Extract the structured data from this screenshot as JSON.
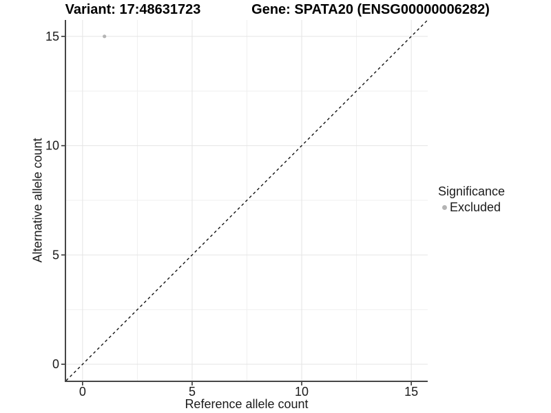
{
  "chart_data": {
    "type": "scatter",
    "titles": {
      "variant": "Variant: 17:48631723",
      "gene": "Gene: SPATA20 (ENSG00000006282)"
    },
    "xlabel": "Reference allele count",
    "ylabel": "Alternative allele count",
    "axis_range": [
      -0.75,
      15.75
    ],
    "xlim": [
      0,
      15
    ],
    "ylim": [
      0,
      15
    ],
    "ticks": [
      0,
      5,
      10,
      15
    ],
    "minor_ticks": [
      2.5,
      7.5,
      12.5
    ],
    "grid": true,
    "points": [
      {
        "x": 1,
        "y": 15,
        "series": "Excluded"
      }
    ],
    "identity_line": {
      "style": "dashed",
      "slope": 1,
      "intercept": 0
    },
    "legend": {
      "title": "Significance",
      "position": "right",
      "items": [
        {
          "label": "Excluded",
          "color": "#b4b4b4"
        }
      ]
    },
    "colors": {
      "point": "#b4b4b4",
      "grid_major": "#e4e4e4",
      "grid_minor": "#efefef",
      "axis_line": "#464646",
      "tick_mark": "#333333",
      "tick_text": "#1a1a1a",
      "dashed_line": "#111111",
      "background": "#ffffff"
    }
  }
}
